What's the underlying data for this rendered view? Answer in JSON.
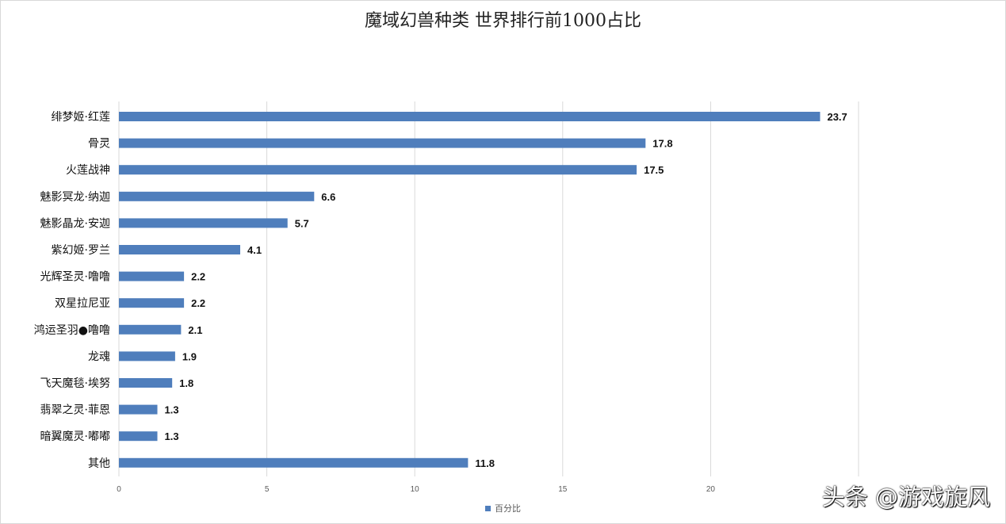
{
  "colors": {
    "bar": "#4f7ebc",
    "grid": "#d9d9d9"
  },
  "watermark": "头条 @游戏旋风",
  "chart_data": {
    "type": "bar",
    "orientation": "horizontal",
    "title": "魔域幻兽种类  世界排行前1000占比",
    "categories": [
      "绯梦姬·红莲",
      "骨灵",
      "火莲战神",
      "魅影冥龙·纳迦",
      "魅影晶龙·安迦",
      "紫幻姬·罗兰",
      "光辉圣灵·噜噜",
      "双星拉尼亚",
      "鸿运圣羽●噜噜",
      "龙魂",
      "飞天魔毯·埃努",
      "翡翠之灵·菲恩",
      "暗翼魔灵·嘟嘟",
      "其他"
    ],
    "series": [
      {
        "name": "百分比",
        "values": [
          23.7,
          17.8,
          17.5,
          6.6,
          5.7,
          4.1,
          2.2,
          2.2,
          2.1,
          1.9,
          1.8,
          1.3,
          1.3,
          11.8
        ]
      }
    ],
    "data_labels": [
      "23.7",
      "17.8",
      "17.5",
      "6.6",
      "5.7",
      "4.1",
      "2.2",
      "2.2",
      "2.1",
      "1.9",
      "1.8",
      "1.3",
      "1.3",
      "11.8"
    ],
    "xticks": [
      0,
      5,
      10,
      15,
      20,
      25
    ],
    "xlim": [
      0,
      25
    ],
    "xlabel": "",
    "ylabel": "",
    "grid": "vertical",
    "legend": "bottom"
  }
}
